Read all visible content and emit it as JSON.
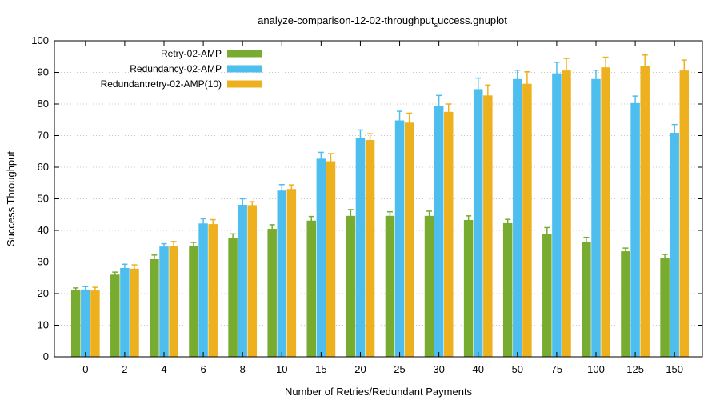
{
  "chart_data": {
    "type": "bar",
    "title": "analyze-comparison-12-02-throughput_success.gnuplot",
    "title_parts": {
      "main": "analyze-comparison-12-02-throughput",
      "subscript": "s",
      "rest": "uccess.gnuplot"
    },
    "xlabel": "Number of Retries/Redundant Payments",
    "ylabel": "Success Throughput",
    "ylim": [
      0,
      100
    ],
    "yticks": [
      0,
      10,
      20,
      30,
      40,
      50,
      60,
      70,
      80,
      90,
      100
    ],
    "grid": true,
    "legend_position": "top-left",
    "categories": [
      "0",
      "2",
      "4",
      "6",
      "8",
      "10",
      "15",
      "20",
      "25",
      "30",
      "40",
      "50",
      "75",
      "100",
      "125",
      "150"
    ],
    "series": [
      {
        "name": "Retry-02-AMP",
        "color": "#77ac30",
        "values": [
          21.2,
          26.0,
          30.9,
          35.2,
          37.5,
          40.5,
          43.1,
          44.6,
          44.6,
          44.6,
          43.3,
          42.3,
          38.9,
          36.3,
          33.4,
          31.4
        ],
        "errors": [
          0.6,
          0.8,
          1.3,
          1.0,
          1.4,
          1.3,
          1.3,
          2.0,
          1.3,
          1.5,
          1.3,
          1.2,
          2.0,
          1.5,
          1.0,
          1.0
        ]
      },
      {
        "name": "Redundancy-02-AMP",
        "color": "#4dbeee",
        "values": [
          21.3,
          28.1,
          34.9,
          42.2,
          48.1,
          52.6,
          62.7,
          69.2,
          74.8,
          79.3,
          84.7,
          87.9,
          89.7,
          87.9,
          80.3,
          70.9
        ],
        "errors": [
          0.9,
          1.2,
          0.9,
          1.5,
          1.9,
          1.9,
          2.0,
          2.6,
          2.9,
          3.4,
          3.5,
          2.8,
          3.5,
          2.8,
          2.2,
          2.6
        ]
      },
      {
        "name": "Redundantretry-02-AMP(10)",
        "color": "#edb120",
        "values": [
          21.0,
          27.9,
          35.1,
          42.0,
          48.0,
          53.1,
          61.9,
          68.6,
          74.1,
          77.5,
          82.7,
          86.4,
          90.6,
          91.6,
          91.9,
          90.6
        ],
        "errors": [
          1.0,
          1.2,
          1.4,
          1.4,
          1.1,
          1.3,
          2.4,
          2.0,
          3.0,
          2.5,
          3.3,
          3.8,
          3.8,
          3.2,
          3.6,
          3.3
        ]
      }
    ]
  }
}
